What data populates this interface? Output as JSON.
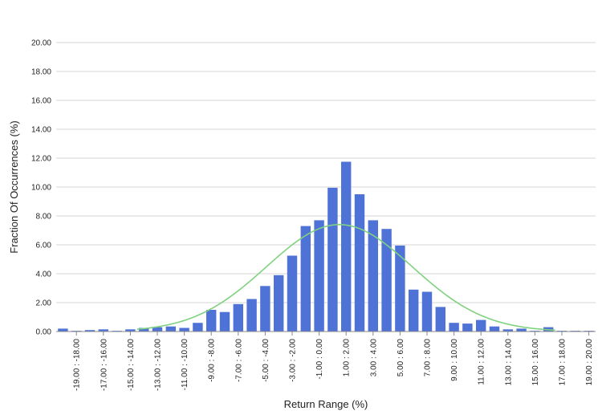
{
  "chart_data": {
    "type": "bar",
    "xlabel": "Return Range (%)",
    "ylabel": "Fraction Of Occurrences (%)",
    "ylim": [
      0,
      20
    ],
    "yticks": [
      "0.00",
      "2.00",
      "4.00",
      "6.00",
      "8.00",
      "10.00",
      "12.00",
      "14.00",
      "16.00",
      "18.00",
      "20.00"
    ],
    "grid": true,
    "bar_color": "#4f72d6",
    "curve_color": "#7fd27f",
    "categories": [
      "-20.00 : -19.00",
      "-19.00 : -18.00",
      "-18.00 : -17.00",
      "-17.00 : -16.00",
      "-16.00 : -15.00",
      "-15.00 : -14.00",
      "-14.00 : -13.00",
      "-13.00 : -12.00",
      "-12.00 : -11.00",
      "-11.00 : -10.00",
      "-10.00 : -9.00",
      "-9.00 : -8.00",
      "-8.00 : -7.00",
      "-7.00 : -6.00",
      "-6.00 : -5.00",
      "-5.00 : -4.00",
      "-4.00 : -3.00",
      "-3.00 : -2.00",
      "-2.00 : -1.00",
      "-1.00 : 0.00",
      "0.00 : 1.00",
      "1.00 : 2.00",
      "2.00 : 3.00",
      "3.00 : 4.00",
      "4.00 : 5.00",
      "5.00 : 6.00",
      "6.00 : 7.00",
      "7.00 : 8.00",
      "8.00 : 9.00",
      "9.00 : 10.00",
      "10.00 : 11.00",
      "11.00 : 12.00",
      "12.00 : 13.00",
      "13.00 : 14.00",
      "14.00 : 15.00",
      "15.00 : 16.00",
      "16.00 : 17.00",
      "17.00 : 18.00",
      "18.00 : 19.00",
      "19.00 : 20.00"
    ],
    "tick_labels_shown": [
      "-19.00 : -18.00",
      "-17.00 : -16.00",
      "-15.00 : -14.00",
      "-13.00 : -12.00",
      "-11.00 : -10.00",
      "-9.00 : -8.00",
      "-7.00 : -6.00",
      "-5.00 : -4.00",
      "-3.00 : -2.00",
      "-1.00 : 0.00",
      "1.00 : 2.00",
      "3.00 : 4.00",
      "5.00 : 6.00",
      "7.00 : 8.00",
      "9.00 : 10.00",
      "11.00 : 12.00",
      "13.00 : 14.00",
      "15.00 : 16.00",
      "17.00 : 18.00",
      "19.00 : 20.00"
    ],
    "series": [
      {
        "values": [
          0.2,
          0.05,
          0.1,
          0.15,
          0.05,
          0.15,
          0.25,
          0.3,
          0.35,
          0.25,
          0.6,
          1.5,
          1.35,
          1.9,
          2.25,
          3.15,
          3.9,
          5.25,
          7.3,
          7.7,
          9.95,
          11.75,
          9.5,
          7.7,
          7.1,
          5.95,
          2.9,
          2.75,
          1.7,
          0.6,
          0.55,
          0.8,
          0.35,
          0.15,
          0.2,
          0.05,
          0.3,
          0.05,
          0.05,
          0.05
        ]
      }
    ],
    "curve": {
      "type": "normal",
      "mean": 1.0,
      "stdev": 5.4,
      "peak": 7.4
    }
  }
}
